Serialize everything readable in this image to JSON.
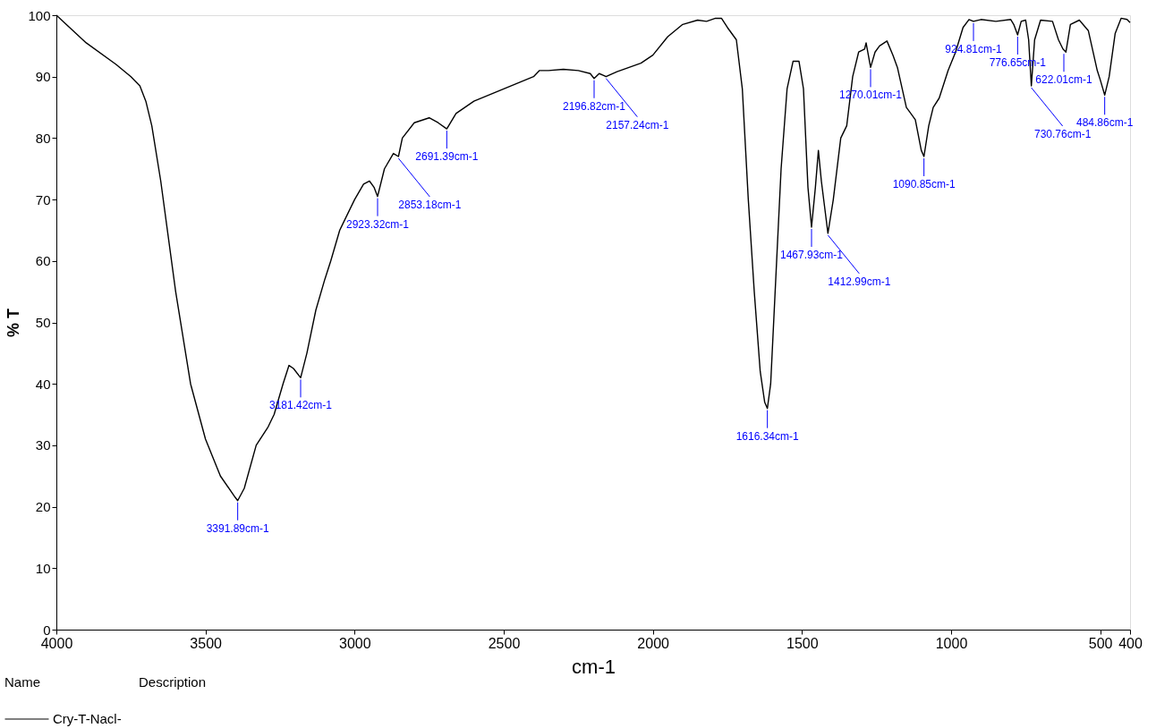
{
  "chart_data": {
    "type": "line",
    "xlabel": "cm-1",
    "ylabel": "% T",
    "legend_title": "Name",
    "legend": "bottom left",
    "grid": false,
    "line_style": "solid",
    "marker": "none",
    "xlim": [
      4000,
      400
    ],
    "xticks": [
      4000,
      3500,
      3000,
      2500,
      2000,
      1500,
      1000,
      500,
      400
    ],
    "ylim": [
      0,
      100
    ],
    "yticks": [
      0,
      10,
      20,
      30,
      40,
      50,
      60,
      70,
      80,
      90,
      100
    ],
    "x": [
      4000,
      3900,
      3800,
      3750,
      3720,
      3700,
      3680,
      3650,
      3600,
      3550,
      3500,
      3450,
      3400,
      3392,
      3370,
      3330,
      3290,
      3270,
      3240,
      3220,
      3205,
      3181,
      3160,
      3130,
      3100,
      3080,
      3050,
      3000,
      2970,
      2950,
      2935,
      2923,
      2900,
      2870,
      2853,
      2840,
      2800,
      2750,
      2720,
      2691,
      2660,
      2600,
      2500,
      2400,
      2380,
      2350,
      2300,
      2250,
      2210,
      2197,
      2180,
      2165,
      2157,
      2120,
      2080,
      2040,
      2000,
      1950,
      1900,
      1850,
      1820,
      1790,
      1770,
      1750,
      1720,
      1700,
      1680,
      1660,
      1640,
      1625,
      1616,
      1605,
      1590,
      1570,
      1550,
      1530,
      1510,
      1495,
      1480,
      1468,
      1455,
      1445,
      1435,
      1413,
      1395,
      1370,
      1350,
      1330,
      1310,
      1290,
      1285,
      1270,
      1255,
      1240,
      1215,
      1195,
      1180,
      1150,
      1120,
      1100,
      1091,
      1075,
      1060,
      1040,
      1010,
      985,
      960,
      940,
      925,
      900,
      850,
      800,
      790,
      777,
      765,
      750,
      740,
      731,
      720,
      700,
      660,
      640,
      625,
      615,
      600,
      570,
      540,
      510,
      500,
      485,
      470,
      450,
      430,
      410,
      400
    ],
    "series": [
      {
        "name": "Cry-T-Nacl-",
        "color": "#000000",
        "values": [
          100,
          95.5,
          92,
          90,
          88.5,
          86,
          82,
          73,
          55,
          40,
          31,
          25,
          21.5,
          21,
          23,
          30,
          33,
          35,
          40,
          43,
          42.5,
          41,
          45,
          52,
          57,
          60,
          65,
          70,
          72.5,
          73,
          72,
          70.5,
          75,
          77.5,
          77,
          80,
          82.5,
          83.3,
          82.5,
          81.5,
          84,
          86,
          88,
          90,
          91,
          91,
          91.2,
          91,
          90.5,
          89.7,
          90.5,
          90.2,
          90,
          90.8,
          91.5,
          92.2,
          93.5,
          96.5,
          98.5,
          99.2,
          99,
          99.5,
          99.5,
          98,
          96,
          88,
          70,
          55,
          42,
          37,
          36,
          40,
          55,
          75,
          88,
          92.5,
          92.5,
          88,
          72,
          65.5,
          72,
          78,
          73,
          64.5,
          70,
          80,
          82,
          90,
          94,
          94.5,
          95.5,
          91.5,
          94,
          95,
          95.8,
          93.5,
          91.5,
          85,
          83,
          78,
          77,
          82,
          85,
          86.5,
          91,
          94,
          98,
          99.3,
          99,
          99.3,
          99,
          99.3,
          98.5,
          96.8,
          99,
          99.2,
          96,
          88.5,
          96,
          99.2,
          99,
          96,
          94.5,
          94,
          98.5,
          99.2,
          97.5,
          91,
          89.5,
          87,
          90,
          97,
          99.5,
          99.3,
          98.8
        ]
      }
    ],
    "annotations": [
      {
        "text": "3391.89cm-1",
        "x": 3392,
        "y": 21
      },
      {
        "text": "3181.42cm-1",
        "x": 3181,
        "y": 41
      },
      {
        "text": "2923.32cm-1",
        "x": 2923,
        "y": 70.5
      },
      {
        "text": "2853.18cm-1",
        "x": 2853,
        "y": 77
      },
      {
        "text": "2691.39cm-1",
        "x": 2691,
        "y": 81.5
      },
      {
        "text": "2196.82cm-1",
        "x": 2197,
        "y": 89.7
      },
      {
        "text": "2157.24cm-1",
        "x": 2157,
        "y": 90
      },
      {
        "text": "1616.34cm-1",
        "x": 1616,
        "y": 36
      },
      {
        "text": "1467.93cm-1",
        "x": 1468,
        "y": 65.5
      },
      {
        "text": "1412.99cm-1",
        "x": 1413,
        "y": 64.5
      },
      {
        "text": "1270.01cm-1",
        "x": 1270,
        "y": 91.5
      },
      {
        "text": "1090.85cm-1",
        "x": 1091,
        "y": 77
      },
      {
        "text": "924.81cm-1",
        "x": 925,
        "y": 99
      },
      {
        "text": "776.65cm-1",
        "x": 777,
        "y": 96.8
      },
      {
        "text": "730.76cm-1",
        "x": 731,
        "y": 88.5
      },
      {
        "text": "622.01cm-1",
        "x": 622,
        "y": 94
      },
      {
        "text": "484.86cm-1",
        "x": 485,
        "y": 87
      },
      "Description"
    ]
  }
}
